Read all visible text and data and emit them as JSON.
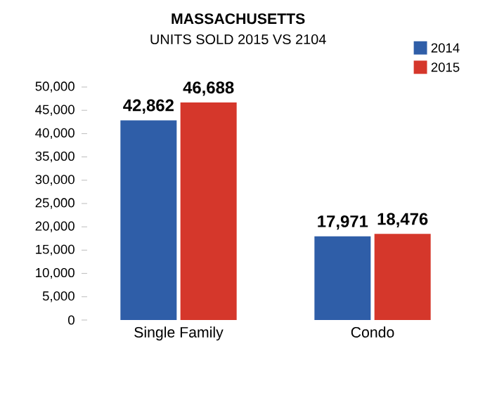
{
  "chart_data": {
    "type": "bar",
    "title": "MASSACHUSETTS",
    "subtitle": "UNITS SOLD  2015 VS 2104",
    "categories": [
      "Single Family",
      "Condo"
    ],
    "series": [
      {
        "name": "2014",
        "color": "#2f5ea8",
        "values": [
          42862,
          17971
        ],
        "value_labels": [
          "42,862",
          "17,971"
        ]
      },
      {
        "name": "2015",
        "color": "#d5372b",
        "values": [
          46688,
          18476
        ],
        "value_labels": [
          "46,688",
          "18,476"
        ]
      }
    ],
    "ylim": [
      0,
      50000
    ],
    "yticks": [
      0,
      {
        "value": 5000,
        "label": "5,000"
      },
      {
        "value": 10000,
        "label": "10,000"
      },
      {
        "value": 15000,
        "label": "15,000"
      },
      {
        "value": 20000,
        "label": "20,000"
      },
      {
        "value": 25000,
        "label": "25,000"
      },
      {
        "value": 30000,
        "label": "30,000"
      },
      {
        "value": 35000,
        "label": "35,000"
      },
      {
        "value": 40000,
        "label": "40,000"
      },
      {
        "value": 45000,
        "label": "45,000"
      },
      {
        "value": 50000,
        "label": "50,000"
      }
    ],
    "legend": "top right"
  }
}
